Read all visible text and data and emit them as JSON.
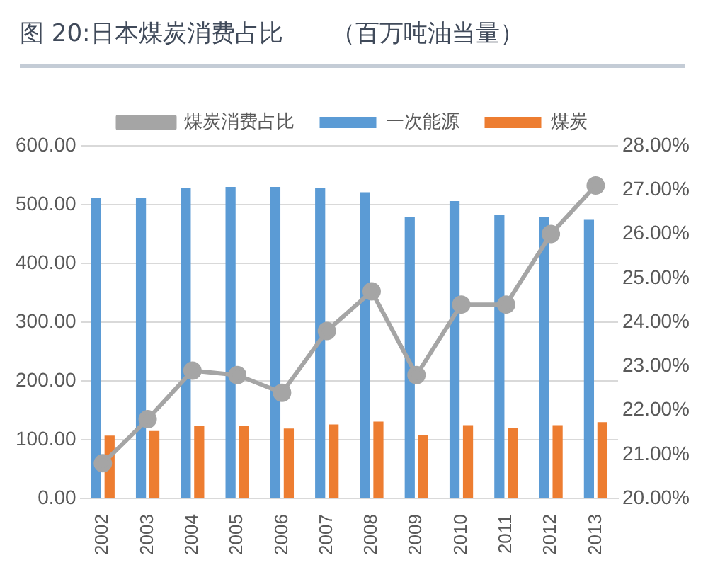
{
  "chart_data": {
    "type": "bar",
    "title": "图 20:日本煤炭消费占比　　（百万吨油当量）",
    "categories": [
      "2002",
      "2003",
      "2004",
      "2005",
      "2006",
      "2007",
      "2008",
      "2009",
      "2010",
      "2011",
      "2012",
      "2013"
    ],
    "series": [
      {
        "name": "一次能源",
        "color": "#5b9bd5",
        "values": [
          512,
          512,
          528,
          530,
          530,
          528,
          521,
          479,
          506,
          482,
          479,
          474
        ]
      },
      {
        "name": "煤炭",
        "color": "#ed7d31",
        "values": [
          107,
          115,
          123,
          123,
          119,
          126,
          131,
          108,
          125,
          120,
          125,
          130
        ]
      },
      {
        "name": "煤炭消费占比",
        "type": "line",
        "axis": "y2",
        "color": "#a5a5a5",
        "values": [
          20.8,
          21.8,
          22.9,
          22.8,
          22.4,
          23.8,
          24.7,
          22.8,
          24.4,
          24.4,
          26.0,
          27.1
        ]
      }
    ],
    "ylim": [
      0,
      600
    ],
    "yticks": [
      {
        "value": 0,
        "label": "0.00"
      },
      {
        "value": 100,
        "label": "100.00"
      },
      {
        "value": 200,
        "label": "200.00"
      },
      {
        "value": 300,
        "label": "300.00"
      },
      {
        "value": 400,
        "label": "400.00"
      },
      {
        "value": 500,
        "label": "500.00"
      },
      {
        "value": 600,
        "label": "600.00"
      }
    ],
    "y2lim": [
      20,
      28
    ],
    "y2ticks": [
      {
        "value": 20,
        "label": "20.00%"
      },
      {
        "value": 21,
        "label": "21.00%"
      },
      {
        "value": 22,
        "label": "22.00%"
      },
      {
        "value": 23,
        "label": "23.00%"
      },
      {
        "value": 24,
        "label": "24.00%"
      },
      {
        "value": 25,
        "label": "25.00%"
      },
      {
        "value": 26,
        "label": "26.00%"
      },
      {
        "value": 27,
        "label": "27.00%"
      },
      {
        "value": 28,
        "label": "28.00%"
      }
    ],
    "grid": "y",
    "legend": "top",
    "marker": "circle"
  }
}
